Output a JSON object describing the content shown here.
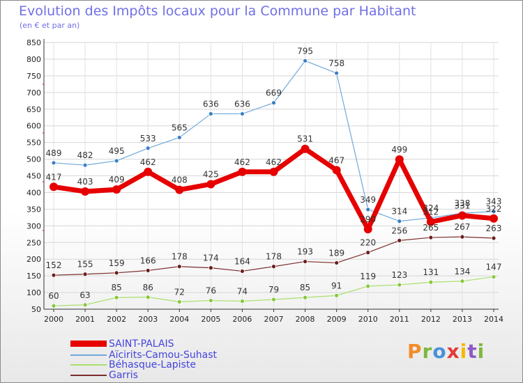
{
  "header": {
    "title": "Evolution des Impôts locaux pour la Commune par Habitant",
    "subtitle": "(en € et par an)"
  },
  "brand": {
    "text": "Proxiti",
    "colors": [
      "#f28c28",
      "#7db83e",
      "#4a90d9",
      "#e23b3b",
      "#f5b800",
      "#8e5ac8",
      "#7db83e"
    ]
  },
  "chart_data": {
    "type": "line",
    "title": "Evolution des Impôts locaux pour la Commune par Habitant",
    "subtitle": "(en € et par an)",
    "xlabel": "",
    "ylabel": "",
    "x": [
      "2000",
      "2001",
      "2002",
      "2003",
      "2004",
      "2005",
      "2006",
      "2007",
      "2008",
      "2009",
      "2010",
      "2011",
      "2012",
      "2013",
      "2014"
    ],
    "ylim": [
      50,
      850
    ],
    "yticks": [
      50,
      100,
      150,
      200,
      250,
      300,
      350,
      400,
      450,
      500,
      550,
      600,
      650,
      700,
      750,
      800,
      850
    ],
    "grid": true,
    "legend_position": "bottom-left",
    "series": [
      {
        "name": "SAINT-PALAIS",
        "color": "#e60000",
        "values": [
          417,
          403,
          409,
          462,
          408,
          425,
          462,
          462,
          531,
          467,
          290,
          499,
          312,
          331,
          322
        ],
        "labels": [
          "417",
          "403",
          "409",
          "462",
          "408",
          "425",
          "462",
          "462",
          "531",
          "467",
          "290",
          "499",
          "312",
          "331",
          "322"
        ]
      },
      {
        "name": "Aïcirits-Camou-Suhast",
        "color": "#6fa8dc",
        "values": [
          489,
          482,
          495,
          533,
          565,
          636,
          636,
          669,
          795,
          758,
          349,
          314,
          324,
          338,
          343
        ],
        "labels": [
          "489",
          "482",
          "495",
          "533",
          "565",
          "636",
          "636",
          "669",
          "795",
          "758",
          "349",
          "314",
          "324",
          "338",
          "343"
        ]
      },
      {
        "name": "Béhasque-Lapiste",
        "color": "#a8e06a",
        "values": [
          60,
          63,
          85,
          86,
          72,
          76,
          74,
          79,
          85,
          91,
          119,
          123,
          131,
          134,
          147
        ],
        "labels": [
          "60",
          "63",
          "85",
          "86",
          "72",
          "76",
          "74",
          "79",
          "85",
          "91",
          "119",
          "123",
          "131",
          "134",
          "147"
        ]
      },
      {
        "name": "Garris",
        "color": "#7b2d2d",
        "values": [
          152,
          155,
          159,
          166,
          178,
          174,
          164,
          178,
          193,
          189,
          220,
          256,
          265,
          267,
          263
        ],
        "labels": [
          "152",
          "155",
          "159",
          "166",
          "178",
          "174",
          "164",
          "178",
          "193",
          "189",
          "220",
          "256",
          "265",
          "267",
          "263"
        ]
      }
    ]
  }
}
